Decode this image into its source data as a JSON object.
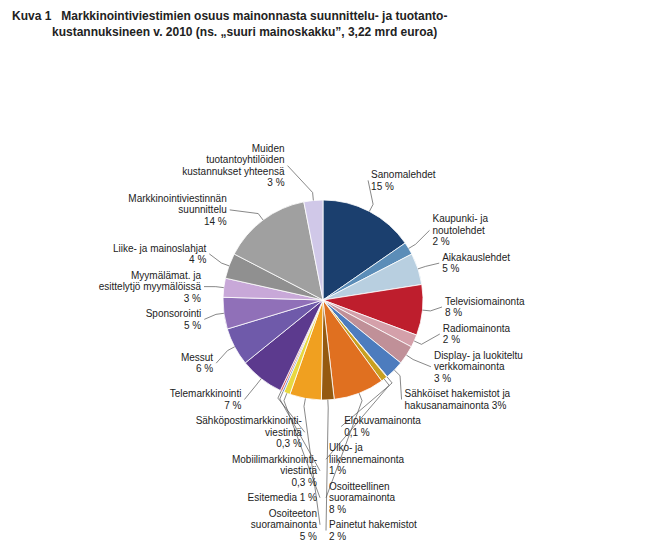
{
  "chart_data": {
    "type": "pie",
    "title": "Kuva 1   Markkinointiviestimien osuus mainonnasta suunnittelu- ja tuotanto-\n            kustannuksineen v. 2010 (ns. „suuri mainoskakku”, 3,22 mrd euroa)",
    "categories": [
      "Sanomalehdet\n15 %",
      "Kaupunki- ja\nnoutolehdet\n2 %",
      "Aikakauslehdet\n5 %",
      "Televisiomainonta\n8 %",
      "Radiomainonta\n2 %",
      "Display- ja luokiteltu\nverkkomainonta\n3 %",
      "Sähköiset hakemistot ja\nhakusanamainonta 3%",
      "Elokuvamainonta\n0,1 %",
      "Ulko- ja\nliikennemainonta\n1 %",
      "Osoitteellinen\nsuoramainonta\n8 %",
      "Painetut hakemistot\n2 %",
      "Osoiteeton\nsuoramainonta\n5 %",
      "Esitemedia 1 %",
      "Mobiilimarkkinointi-\nviestintä\n0,3 %",
      "Sähköpostimarkkinointi-\nviestintä\n0,3 %",
      "Telemarkkinointi\n7 %",
      "Messut\n6 %",
      "Sponsorointi\n5 %",
      "Myymälämat. ja\nesittelytjö myymälöissä\n3 %",
      "Liike- ja mainoslahjat\n4 %",
      "Markkinointiviestinnän\nsuunnittelu\n14 %",
      "Muiden\ntuotantoyhtilöiden\nkustannukset yhteensä\n3 %"
    ],
    "values": [
      15,
      2,
      5,
      8,
      2,
      3,
      3,
      0.1,
      1,
      8,
      2,
      5,
      1,
      0.3,
      0.3,
      7,
      6,
      5,
      3,
      4,
      14,
      3
    ],
    "colors": [
      "#1b3f6e",
      "#5b8db8",
      "#b8cfe0",
      "#be1e2d",
      "#d4a0aa",
      "#c09098",
      "#4d7cbe",
      "#7b3f10",
      "#c8a020",
      "#e07020",
      "#955a10",
      "#f0a020",
      "#e8d840",
      "#7090c8",
      "#e05050",
      "#5c3a8e",
      "#6f5aaa",
      "#9070b8",
      "#c8a8d8",
      "#909090",
      "#a0a0a0",
      "#d0c8e8"
    ]
  }
}
